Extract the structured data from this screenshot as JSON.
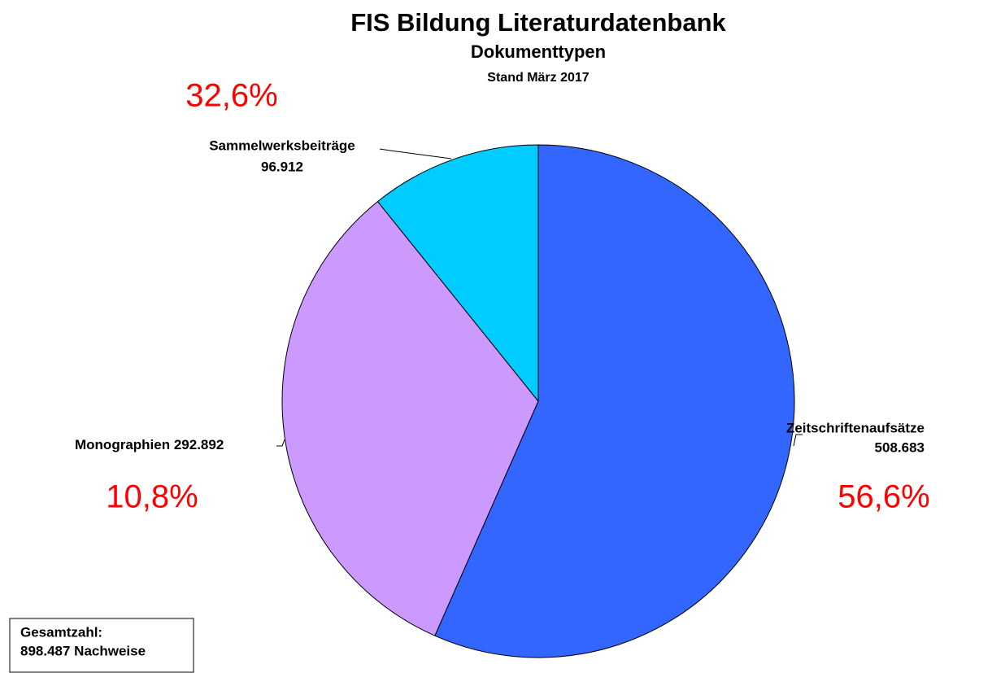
{
  "chart_data": {
    "type": "pie",
    "title": "FIS Bildung Literaturdatenbank",
    "subtitle": "Dokumenttypen",
    "date_note": "Stand März 2017",
    "categories": [
      "Zeitschriftenaufsätze",
      "Monographien",
      "Sammelwerksbeiträge"
    ],
    "values": [
      508683,
      292892,
      96912
    ],
    "value_labels": [
      "508.683",
      "292.892",
      "96.912"
    ],
    "colors": [
      "#3366ff",
      "#cc99ff",
      "#00ccff"
    ],
    "percent_labels": [
      "56,6%",
      "32,6%",
      "10,8%"
    ],
    "total_label": "Gesamtzahl:",
    "total_text": "898.487 Nachweise"
  }
}
